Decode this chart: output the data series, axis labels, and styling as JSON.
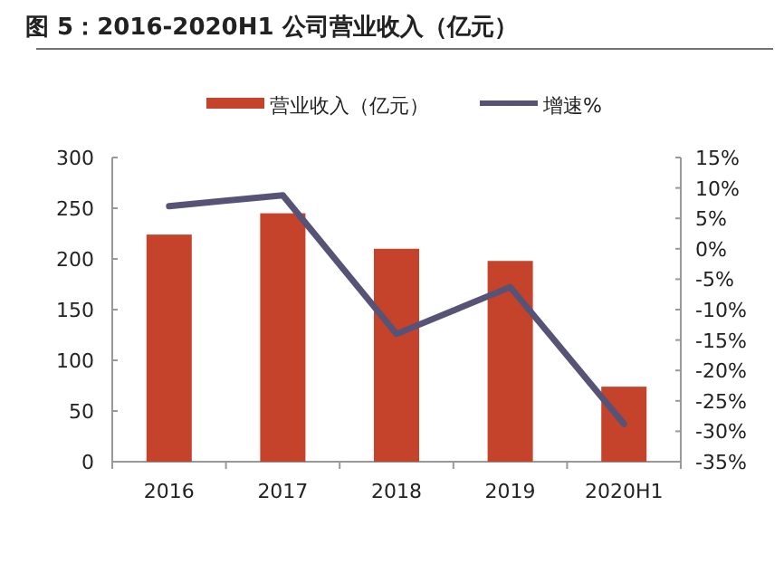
{
  "chart_data": {
    "type": "bar",
    "title": "图 5：2016-2020H1 公司营业收入（亿元）",
    "categories": [
      "2016",
      "2017",
      "2018",
      "2019",
      "2020H1"
    ],
    "series": [
      {
        "name": "营业收入（亿元）",
        "color": "#c5432a",
        "values": [
          224,
          245,
          210,
          198,
          74
        ]
      },
      {
        "name": "增速%",
        "type": "line",
        "axis": "y2",
        "color": "#565377",
        "values": [
          7.0,
          8.8,
          -14.0,
          -6.3,
          -28.8
        ]
      }
    ],
    "ylim": [
      0,
      300
    ],
    "yticks": [
      0,
      50,
      100,
      150,
      200,
      250,
      300
    ],
    "y2lim": [
      -35,
      15
    ],
    "y2ticks": [
      {
        "value": -35,
        "label": "-35%"
      },
      {
        "value": -30,
        "label": "-30%"
      },
      {
        "value": -25,
        "label": "-25%"
      },
      {
        "value": -20,
        "label": "-20%"
      },
      {
        "value": -15,
        "label": "-15%"
      },
      {
        "value": -10,
        "label": "-10%"
      },
      {
        "value": -5,
        "label": "-5%"
      },
      {
        "value": 0,
        "label": "0%"
      },
      {
        "value": 5,
        "label": "5%"
      },
      {
        "value": 10,
        "label": "10%"
      },
      {
        "value": 15,
        "label": "15%"
      }
    ],
    "legend": "top",
    "grid": false,
    "marker": "none"
  }
}
